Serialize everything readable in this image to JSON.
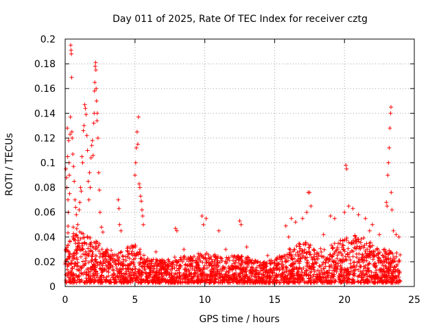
{
  "chart_data": {
    "type": "scatter",
    "title": "Day 011 of 2025, Rate Of TEC Index for receiver cztg",
    "xlabel": "GPS time / hours",
    "ylabel": "ROTI / TECUs",
    "xlim": [
      0,
      25
    ],
    "ylim": [
      0,
      0.2
    ],
    "xticks": [
      0,
      5,
      10,
      15,
      20,
      25
    ],
    "xtick_labels": [
      "0",
      "5",
      "10",
      "15",
      "20",
      "25"
    ],
    "yticks": [
      0,
      0.02,
      0.04,
      0.06,
      0.08,
      0.1,
      0.12,
      0.14,
      0.16,
      0.18,
      0.2
    ],
    "ytick_labels": [
      "0",
      "0.02",
      "0.04",
      "0.06",
      "0.08",
      "0.1",
      "0.12",
      "0.14",
      "0.16",
      "0.18",
      "0.2"
    ],
    "grid": true,
    "marker": "+",
    "color": "#ff0000",
    "series": [
      {
        "name": "ROTI",
        "points": [
          [
            0.05,
            0.095
          ],
          [
            0.1,
            0.088
          ],
          [
            0.12,
            0.08
          ],
          [
            0.15,
            0.128
          ],
          [
            0.18,
            0.105
          ],
          [
            0.2,
            0.07
          ],
          [
            0.22,
            0.06
          ],
          [
            0.25,
            0.118
          ],
          [
            0.28,
            0.1
          ],
          [
            0.3,
            0.09
          ],
          [
            0.32,
            0.075
          ],
          [
            0.35,
            0.123
          ],
          [
            0.38,
            0.137
          ],
          [
            0.4,
            0.195
          ],
          [
            0.42,
            0.191
          ],
          [
            0.44,
            0.188
          ],
          [
            0.46,
            0.169
          ],
          [
            0.48,
            0.125
          ],
          [
            0.5,
            0.12
          ],
          [
            0.55,
            0.107
          ],
          [
            0.6,
            0.097
          ],
          [
            0.65,
            0.085
          ],
          [
            0.7,
            0.07
          ],
          [
            0.75,
            0.064
          ],
          [
            0.8,
            0.058
          ],
          [
            0.9,
            0.05
          ],
          [
            1.0,
            0.062
          ],
          [
            1.05,
            0.068
          ],
          [
            1.1,
            0.08
          ],
          [
            1.15,
            0.077
          ],
          [
            1.2,
            0.105
          ],
          [
            1.25,
            0.1
          ],
          [
            1.3,
            0.126
          ],
          [
            1.35,
            0.13
          ],
          [
            1.4,
            0.147
          ],
          [
            1.45,
            0.144
          ],
          [
            1.5,
            0.139
          ],
          [
            1.55,
            0.122
          ],
          [
            1.6,
            0.11
          ],
          [
            1.65,
            0.085
          ],
          [
            1.7,
            0.07
          ],
          [
            1.75,
            0.092
          ],
          [
            1.8,
            0.08
          ],
          [
            1.85,
            0.104
          ],
          [
            1.9,
            0.114
          ],
          [
            1.95,
            0.118
          ],
          [
            2.0,
            0.106
          ],
          [
            2.05,
            0.132
          ],
          [
            2.08,
            0.14
          ],
          [
            2.1,
            0.158
          ],
          [
            2.12,
            0.165
          ],
          [
            2.15,
            0.178
          ],
          [
            2.18,
            0.181
          ],
          [
            2.2,
            0.175
          ],
          [
            2.22,
            0.16
          ],
          [
            2.25,
            0.15
          ],
          [
            2.28,
            0.134
          ],
          [
            2.3,
            0.14
          ],
          [
            2.35,
            0.12
          ],
          [
            2.4,
            0.092
          ],
          [
            2.45,
            0.078
          ],
          [
            2.5,
            0.06
          ],
          [
            2.6,
            0.048
          ],
          [
            2.7,
            0.044
          ],
          [
            3.8,
            0.07
          ],
          [
            3.85,
            0.063
          ],
          [
            3.9,
            0.05
          ],
          [
            4.0,
            0.045
          ],
          [
            5.0,
            0.09
          ],
          [
            5.05,
            0.1
          ],
          [
            5.1,
            0.112
          ],
          [
            5.15,
            0.125
          ],
          [
            5.2,
            0.115
          ],
          [
            5.25,
            0.137
          ],
          [
            5.3,
            0.083
          ],
          [
            5.35,
            0.08
          ],
          [
            5.4,
            0.073
          ],
          [
            5.45,
            0.069
          ],
          [
            5.5,
            0.062
          ],
          [
            5.55,
            0.057
          ],
          [
            5.6,
            0.05
          ],
          [
            7.9,
            0.047
          ],
          [
            8.0,
            0.045
          ],
          [
            9.8,
            0.057
          ],
          [
            9.9,
            0.05
          ],
          [
            10.1,
            0.055
          ],
          [
            11.0,
            0.045
          ],
          [
            12.5,
            0.053
          ],
          [
            12.6,
            0.05
          ],
          [
            15.8,
            0.049
          ],
          [
            16.2,
            0.055
          ],
          [
            16.5,
            0.052
          ],
          [
            17.0,
            0.055
          ],
          [
            17.3,
            0.06
          ],
          [
            17.4,
            0.076
          ],
          [
            17.5,
            0.076
          ],
          [
            17.6,
            0.065
          ],
          [
            19.0,
            0.057
          ],
          [
            19.3,
            0.055
          ],
          [
            20.0,
            0.06
          ],
          [
            20.1,
            0.098
          ],
          [
            20.15,
            0.095
          ],
          [
            20.3,
            0.065
          ],
          [
            20.6,
            0.063
          ],
          [
            21.0,
            0.058
          ],
          [
            21.5,
            0.055
          ],
          [
            22.0,
            0.05
          ],
          [
            23.0,
            0.068
          ],
          [
            23.05,
            0.065
          ],
          [
            23.1,
            0.09
          ],
          [
            23.15,
            0.1
          ],
          [
            23.2,
            0.112
          ],
          [
            23.25,
            0.128
          ],
          [
            23.3,
            0.14
          ],
          [
            23.33,
            0.145
          ],
          [
            23.35,
            0.076
          ],
          [
            23.4,
            0.062
          ],
          [
            23.5,
            0.045
          ],
          [
            23.7,
            0.042
          ],
          [
            23.9,
            0.04
          ],
          [
            1.0,
            0.035
          ],
          [
            3.0,
            0.03
          ],
          [
            4.5,
            0.032
          ],
          [
            6.5,
            0.028
          ],
          [
            8.5,
            0.03
          ],
          [
            11.5,
            0.03
          ],
          [
            13.0,
            0.032
          ],
          [
            14.5,
            0.025
          ],
          [
            16.0,
            0.04
          ],
          [
            18.5,
            0.042
          ],
          [
            21.8,
            0.045
          ],
          [
            22.5,
            0.042
          ]
        ]
      }
    ],
    "envelope": {
      "description": "dense background ROTI band",
      "x": [
        0,
        1,
        2,
        3,
        4,
        5,
        6,
        7,
        8,
        9,
        10,
        11,
        12,
        13,
        14,
        15,
        16,
        17,
        18,
        19,
        20,
        21,
        22,
        23,
        24
      ],
      "low": [
        0.003,
        0.003,
        0.003,
        0.003,
        0.003,
        0.003,
        0.003,
        0.003,
        0.003,
        0.003,
        0.003,
        0.003,
        0.003,
        0.003,
        0.003,
        0.003,
        0.003,
        0.003,
        0.003,
        0.003,
        0.003,
        0.003,
        0.003,
        0.003,
        0.003
      ],
      "high": [
        0.055,
        0.045,
        0.04,
        0.03,
        0.028,
        0.035,
        0.022,
        0.022,
        0.025,
        0.025,
        0.028,
        0.025,
        0.025,
        0.024,
        0.02,
        0.022,
        0.03,
        0.038,
        0.03,
        0.033,
        0.04,
        0.042,
        0.035,
        0.03,
        0.028
      ]
    }
  }
}
